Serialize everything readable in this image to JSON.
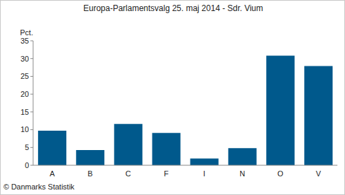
{
  "chart_data": {
    "type": "bar",
    "title": "Europa-Parlamentsvalg 25. maj 2014 - Sdr. Vium",
    "y_label": "Pct.",
    "source": "© Danmarks Statistik",
    "categories": [
      "A",
      "B",
      "C",
      "F",
      "I",
      "N",
      "O",
      "V"
    ],
    "values": [
      9.7,
      4.3,
      11.6,
      9.1,
      1.9,
      4.8,
      30.8,
      27.9
    ],
    "color": "#00598c",
    "ylim": [
      0,
      35
    ],
    "yticks": [
      0,
      5,
      10,
      15,
      20,
      25,
      30,
      35
    ],
    "grid": false
  }
}
